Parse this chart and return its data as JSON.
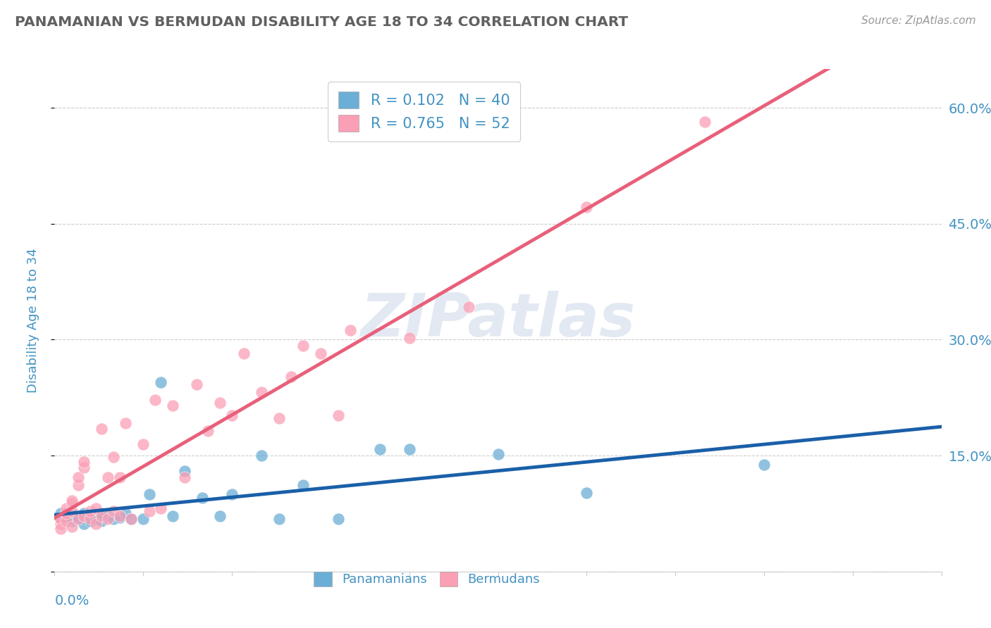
{
  "title": "PANAMANIAN VS BERMUDAN DISABILITY AGE 18 TO 34 CORRELATION CHART",
  "source": "Source: ZipAtlas.com",
  "ylabel": "Disability Age 18 to 34",
  "watermark": "ZIPatlas",
  "xlim": [
    0.0,
    0.15
  ],
  "ylim": [
    0.0,
    0.65
  ],
  "yticks": [
    0.0,
    0.15,
    0.3,
    0.45,
    0.6
  ],
  "ytick_labels": [
    "",
    "15.0%",
    "30.0%",
    "45.0%",
    "60.0%"
  ],
  "xticks": [
    0.0,
    0.015,
    0.03,
    0.045,
    0.06,
    0.075,
    0.09,
    0.105,
    0.12,
    0.135,
    0.15
  ],
  "blue_R": 0.102,
  "blue_N": 40,
  "pink_R": 0.765,
  "pink_N": 52,
  "blue_color": "#6baed6",
  "pink_color": "#fa9fb5",
  "blue_line_color": "#1a5fa8",
  "pink_line_color": "#e8607a",
  "title_color": "#606060",
  "label_color": "#4393c3",
  "background_color": "#ffffff",
  "grid_color": "#cccccc",
  "blue_scatter_x": [
    0.001,
    0.001,
    0.002,
    0.002,
    0.003,
    0.003,
    0.003,
    0.004,
    0.004,
    0.005,
    0.005,
    0.005,
    0.006,
    0.006,
    0.007,
    0.007,
    0.008,
    0.008,
    0.009,
    0.01,
    0.011,
    0.012,
    0.013,
    0.015,
    0.016,
    0.018,
    0.02,
    0.022,
    0.025,
    0.028,
    0.03,
    0.035,
    0.038,
    0.042,
    0.048,
    0.055,
    0.06,
    0.075,
    0.09,
    0.12
  ],
  "blue_scatter_y": [
    0.068,
    0.075,
    0.072,
    0.065,
    0.07,
    0.075,
    0.065,
    0.072,
    0.068,
    0.075,
    0.07,
    0.062,
    0.072,
    0.065,
    0.07,
    0.068,
    0.075,
    0.065,
    0.072,
    0.068,
    0.07,
    0.075,
    0.068,
    0.068,
    0.1,
    0.245,
    0.072,
    0.13,
    0.095,
    0.072,
    0.1,
    0.15,
    0.068,
    0.112,
    0.068,
    0.158,
    0.158,
    0.152,
    0.102,
    0.138
  ],
  "pink_scatter_x": [
    0.001,
    0.001,
    0.001,
    0.002,
    0.002,
    0.002,
    0.003,
    0.003,
    0.003,
    0.003,
    0.004,
    0.004,
    0.004,
    0.005,
    0.005,
    0.005,
    0.006,
    0.006,
    0.007,
    0.007,
    0.008,
    0.008,
    0.009,
    0.009,
    0.01,
    0.01,
    0.011,
    0.011,
    0.012,
    0.013,
    0.015,
    0.016,
    0.017,
    0.018,
    0.02,
    0.022,
    0.024,
    0.026,
    0.028,
    0.03,
    0.032,
    0.035,
    0.038,
    0.04,
    0.042,
    0.045,
    0.048,
    0.05,
    0.06,
    0.07,
    0.09,
    0.11
  ],
  "pink_scatter_y": [
    0.062,
    0.068,
    0.055,
    0.065,
    0.075,
    0.082,
    0.078,
    0.088,
    0.092,
    0.058,
    0.112,
    0.122,
    0.068,
    0.072,
    0.135,
    0.142,
    0.068,
    0.078,
    0.082,
    0.062,
    0.072,
    0.185,
    0.068,
    0.122,
    0.078,
    0.148,
    0.072,
    0.122,
    0.192,
    0.068,
    0.165,
    0.078,
    0.222,
    0.082,
    0.215,
    0.122,
    0.242,
    0.182,
    0.218,
    0.202,
    0.282,
    0.232,
    0.198,
    0.252,
    0.292,
    0.282,
    0.202,
    0.312,
    0.302,
    0.342,
    0.472,
    0.582
  ]
}
